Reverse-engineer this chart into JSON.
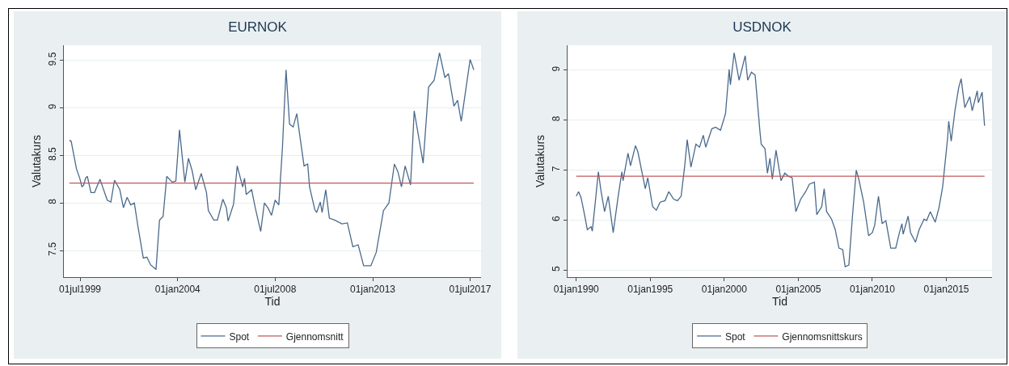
{
  "chart_data": [
    {
      "type": "line",
      "title": "EURNOK",
      "xlabel": "Tid",
      "ylabel": "Valutakurs",
      "grid": "y",
      "legend": "bottom",
      "marker": "none",
      "line_style": "solid",
      "xlim": [
        "1998-10",
        "2018-01"
      ],
      "ylim": [
        7.22,
        9.66
      ],
      "xticks": [
        {
          "value": "1999-07-01",
          "label": "01jul1999"
        },
        {
          "value": "2004-01-01",
          "label": "01jan2004"
        },
        {
          "value": "2008-07-01",
          "label": "01jul2008"
        },
        {
          "value": "2013-01-01",
          "label": "01jan2013"
        },
        {
          "value": "2017-07-01",
          "label": "01jul2017"
        }
      ],
      "yticks": [
        7.5,
        8,
        8.5,
        9,
        9.5
      ],
      "series": [
        {
          "name": "Spot",
          "color": "#4a6a8c",
          "x": [
            "1999-01",
            "1999-02",
            "1999-05",
            "1999-07",
            "1999-08",
            "1999-09",
            "1999-10",
            "1999-11",
            "2000-01",
            "2000-03",
            "2000-06",
            "2000-10",
            "2000-12",
            "2001-02",
            "2001-05",
            "2001-07",
            "2001-09",
            "2001-11",
            "2002-01",
            "2002-03",
            "2002-06",
            "2002-08",
            "2002-10",
            "2003-01",
            "2003-03",
            "2003-05",
            "2003-07",
            "2003-10",
            "2003-12",
            "2004-02",
            "2004-05",
            "2004-07",
            "2004-09",
            "2004-11",
            "2005-02",
            "2005-05",
            "2005-06",
            "2005-09",
            "2005-11",
            "2006-02",
            "2006-04",
            "2006-05",
            "2006-08",
            "2006-10",
            "2007-01",
            "2007-02",
            "2007-03",
            "2007-06",
            "2007-08",
            "2007-11",
            "2008-01",
            "2008-03",
            "2008-05",
            "2008-07",
            "2008-09",
            "2008-11",
            "2009-01",
            "2009-03",
            "2009-05",
            "2009-07",
            "2009-09",
            "2009-11",
            "2010-01",
            "2010-02",
            "2010-05",
            "2010-06",
            "2010-08",
            "2010-09",
            "2010-11",
            "2011-01",
            "2011-04",
            "2011-08",
            "2011-11",
            "2012-02",
            "2012-05",
            "2012-08",
            "2012-12",
            "2013-03",
            "2013-07",
            "2013-10",
            "2014-01",
            "2014-03",
            "2014-05",
            "2014-07",
            "2014-10",
            "2014-12",
            "2015-03",
            "2015-05",
            "2015-08",
            "2015-11",
            "2016-02",
            "2016-05",
            "2016-07",
            "2016-10",
            "2016-12",
            "2017-02",
            "2017-07",
            "2017-09"
          ],
          "values": [
            8.66,
            8.65,
            8.36,
            8.25,
            8.17,
            8.19,
            8.26,
            8.28,
            8.11,
            8.11,
            8.25,
            8.03,
            8.01,
            8.24,
            8.14,
            7.95,
            8.06,
            7.98,
            8.0,
            7.76,
            7.42,
            7.43,
            7.35,
            7.3,
            7.82,
            7.86,
            8.28,
            8.22,
            8.23,
            8.77,
            8.22,
            8.47,
            8.34,
            8.14,
            8.31,
            8.11,
            7.92,
            7.82,
            7.82,
            8.04,
            7.95,
            7.81,
            7.99,
            8.39,
            8.17,
            8.26,
            8.09,
            8.14,
            7.95,
            7.7,
            8.0,
            7.95,
            7.87,
            8.03,
            7.98,
            8.58,
            9.4,
            8.83,
            8.8,
            8.94,
            8.66,
            8.39,
            8.41,
            8.17,
            7.93,
            7.9,
            8.01,
            7.9,
            8.14,
            7.84,
            7.82,
            7.78,
            7.79,
            7.54,
            7.56,
            7.34,
            7.34,
            7.48,
            7.92,
            8.0,
            8.41,
            8.33,
            8.17,
            8.39,
            8.19,
            8.97,
            8.64,
            8.42,
            9.22,
            9.29,
            9.58,
            9.32,
            9.36,
            9.02,
            9.08,
            8.86,
            9.51,
            9.4
          ]
        },
        {
          "name": "Gjennomsnitt",
          "color": "#c0585c",
          "x": [
            "1999-01",
            "2017-09"
          ],
          "values": [
            8.21,
            8.21
          ]
        }
      ]
    },
    {
      "type": "line",
      "title": "USDNOK",
      "xlabel": "Tid",
      "ylabel": "Valutakurs",
      "grid": "y",
      "legend": "bottom",
      "marker": "none",
      "line_style": "solid",
      "xlim": [
        "1989-06",
        "2018-02"
      ],
      "ylim": [
        4.86,
        9.5
      ],
      "xticks": [
        {
          "value": "1990-01-01",
          "label": "01jan1990"
        },
        {
          "value": "1995-01-01",
          "label": "01jan1995"
        },
        {
          "value": "2000-01-01",
          "label": "01jan2000"
        },
        {
          "value": "2005-01-01",
          "label": "01jan2005"
        },
        {
          "value": "2010-01-01",
          "label": "01jan2010"
        },
        {
          "value": "2015-01-01",
          "label": "01jan2015"
        }
      ],
      "yticks": [
        5,
        6,
        7,
        8,
        9
      ],
      "series": [
        {
          "name": "Spot",
          "color": "#4a6a8c",
          "x": [
            "1990-01",
            "1990-03",
            "1990-05",
            "1990-08",
            "1990-10",
            "1991-01",
            "1991-02",
            "1991-04",
            "1991-07",
            "1991-09",
            "1991-12",
            "1992-03",
            "1992-07",
            "1992-11",
            "1993-02",
            "1993-03",
            "1993-07",
            "1993-09",
            "1994-01",
            "1994-03",
            "1994-07",
            "1994-09",
            "1994-11",
            "1995-03",
            "1995-06",
            "1995-09",
            "1996-01",
            "1996-04",
            "1996-08",
            "1996-11",
            "1997-02",
            "1997-05",
            "1997-07",
            "1997-10",
            "1998-02",
            "1998-05",
            "1998-08",
            "1998-10",
            "1999-03",
            "1999-06",
            "1999-10",
            "2000-02",
            "2000-05",
            "2000-06",
            "2000-09",
            "2001-01",
            "2001-06",
            "2001-08",
            "2001-11",
            "2002-02",
            "2002-06",
            "2002-07",
            "2002-10",
            "2002-12",
            "2003-02",
            "2003-04",
            "2003-07",
            "2003-11",
            "2004-02",
            "2004-05",
            "2004-08",
            "2004-11",
            "2005-03",
            "2005-07",
            "2005-10",
            "2006-02",
            "2006-04",
            "2006-08",
            "2006-10",
            "2006-12",
            "2007-04",
            "2007-07",
            "2007-10",
            "2008-01",
            "2008-03",
            "2008-06",
            "2008-09",
            "2008-12",
            "2009-02",
            "2009-06",
            "2009-10",
            "2010-01",
            "2010-03",
            "2010-06",
            "2010-09",
            "2010-12",
            "2011-04",
            "2011-08",
            "2011-11",
            "2012-01",
            "2012-02",
            "2012-06",
            "2012-08",
            "2012-12",
            "2013-03",
            "2013-07",
            "2013-09",
            "2013-12",
            "2014-04",
            "2014-07",
            "2014-10",
            "2015-02",
            "2015-03",
            "2015-05",
            "2015-08",
            "2015-11",
            "2016-01",
            "2016-04",
            "2016-08",
            "2016-10",
            "2017-02",
            "2017-03",
            "2017-06",
            "2017-08"
          ],
          "values": [
            6.48,
            6.57,
            6.45,
            6.08,
            5.81,
            5.87,
            5.78,
            6.24,
            6.97,
            6.6,
            6.17,
            6.48,
            5.75,
            6.48,
            6.97,
            6.79,
            7.34,
            7.09,
            7.49,
            7.37,
            6.88,
            6.63,
            6.85,
            6.27,
            6.2,
            6.36,
            6.39,
            6.57,
            6.42,
            6.39,
            6.48,
            7.09,
            7.61,
            7.06,
            7.52,
            7.46,
            7.7,
            7.46,
            7.83,
            7.86,
            7.8,
            8.13,
            9.02,
            8.71,
            9.35,
            8.8,
            9.29,
            8.8,
            8.96,
            8.9,
            7.76,
            7.52,
            7.43,
            6.94,
            7.24,
            6.82,
            7.4,
            6.79,
            6.94,
            6.88,
            6.85,
            6.17,
            6.42,
            6.57,
            6.72,
            6.76,
            6.11,
            6.27,
            6.63,
            6.17,
            6.02,
            5.81,
            5.44,
            5.41,
            5.07,
            5.1,
            6.11,
            7.0,
            6.82,
            6.36,
            5.69,
            5.75,
            5.9,
            6.48,
            5.93,
            5.99,
            5.44,
            5.44,
            5.75,
            5.93,
            5.72,
            6.08,
            5.75,
            5.56,
            5.81,
            6.02,
            5.99,
            6.17,
            5.96,
            6.24,
            6.66,
            7.64,
            7.98,
            7.58,
            8.19,
            8.65,
            8.83,
            8.25,
            8.47,
            8.19,
            8.59,
            8.35,
            8.56,
            7.89
          ]
        },
        {
          "name": "Gjennomsnittskurs",
          "color": "#c0585c",
          "x": [
            "1990-01",
            "2017-08"
          ],
          "values": [
            6.88,
            6.88
          ]
        }
      ]
    }
  ]
}
